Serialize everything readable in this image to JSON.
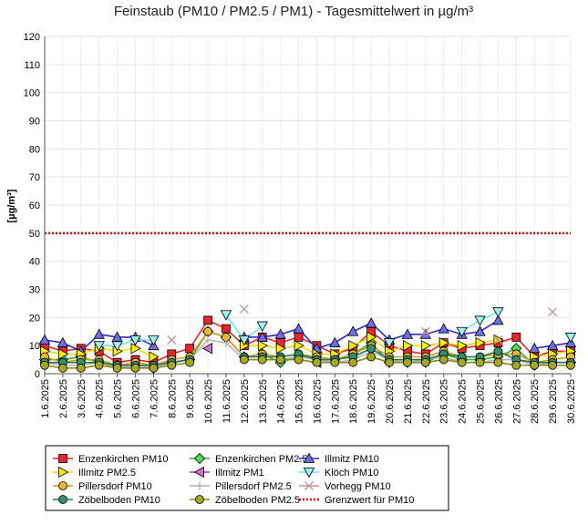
{
  "chart_data": {
    "type": "line",
    "title": "Feinstaub (PM10 / PM2.5 / PM1) -  Tagesmittelwert in µg/m³",
    "ylabel": "[µg/m³]",
    "xlabel": "",
    "ylim": [
      0,
      120
    ],
    "y_ticks": [
      0,
      10,
      20,
      30,
      40,
      50,
      60,
      70,
      80,
      90,
      100,
      110,
      120
    ],
    "grid": true,
    "legend_position": "bottom",
    "categories": [
      "1.6.2025",
      "2.6.2025",
      "3.6.2025",
      "4.6.2025",
      "5.6.2025",
      "6.6.2025",
      "7.6.2025",
      "8.6.2025",
      "9.6.2025",
      "10.6.2025",
      "11.6.2025",
      "12.6.2025",
      "13.6.2025",
      "14.6.2025",
      "15.6.2025",
      "16.6.2025",
      "17.6.2025",
      "18.6.2025",
      "19.6.2025",
      "20.6.2025",
      "21.6.2025",
      "22.6.2025",
      "23.6.2025",
      "24.6.2025",
      "25.6.2025",
      "26.6.2025",
      "27.6.2025",
      "28.6.2025",
      "29.6.2025",
      "30.6.2025"
    ],
    "series": [
      {
        "name": "Enzenkirchen PM10",
        "color": "#e8262b",
        "line_color": "#e8262b",
        "marker": "square",
        "marker_fill": "#e8262b",
        "values": [
          10,
          8,
          9,
          8,
          4,
          5,
          4,
          7,
          9,
          19,
          16,
          10,
          13,
          11,
          13,
          10,
          7,
          9,
          15,
          10,
          8,
          7,
          11,
          9,
          10,
          11,
          13,
          6,
          8,
          8
        ]
      },
      {
        "name": "Enzenkirchen PM2.5",
        "color": "#2db52d",
        "line_color": "#2db52d",
        "marker": "diamond",
        "marker_fill": "#56d956",
        "values": [
          5,
          5,
          6,
          4,
          3,
          3,
          2,
          4,
          5,
          15,
          13,
          6,
          7,
          4,
          6,
          6,
          5,
          7,
          11,
          4,
          4,
          4,
          7,
          5,
          5,
          6,
          9,
          3,
          4,
          4
        ]
      },
      {
        "name": "Illmitz PM10",
        "color": "#2b2bd6",
        "line_color": "#2b2bd6",
        "marker": "triangle-up",
        "marker_fill": "#6e6ee8",
        "values": [
          12,
          11,
          8,
          14,
          13,
          13,
          10,
          null,
          null,
          null,
          null,
          13,
          13,
          14,
          16,
          9,
          11,
          15,
          18,
          12,
          14,
          14,
          16,
          14,
          15,
          19,
          null,
          9,
          10,
          11
        ]
      },
      {
        "name": "Illmitz PM2.5",
        "color": "#f0e000",
        "line_color": "#f0e000",
        "marker": "triangle-right",
        "marker_fill": "#ffee00",
        "values": [
          8,
          7,
          7,
          9,
          8,
          9,
          6,
          null,
          null,
          null,
          null,
          10,
          10,
          9,
          10,
          7,
          7,
          10,
          13,
          8,
          10,
          10,
          11,
          10,
          11,
          12,
          null,
          6,
          7,
          8
        ]
      },
      {
        "name": "Illmitz PM1",
        "color": "#b43cb4",
        "line_color": "#b43cb4",
        "marker": "triangle-left",
        "marker_fill": "#d070d0",
        "values": [
          null,
          null,
          null,
          null,
          null,
          null,
          null,
          null,
          null,
          9,
          null,
          null,
          null,
          null,
          null,
          4,
          null,
          null,
          null,
          null,
          null,
          null,
          null,
          null,
          null,
          null,
          null,
          null,
          null,
          null
        ]
      },
      {
        "name": "Klöch PM10",
        "color": "#6be6e6",
        "line_color": "#6be6e6",
        "marker": "triangle-down",
        "marker_fill": "#9ff0f0",
        "values": [
          null,
          null,
          null,
          10,
          10,
          12,
          12,
          null,
          null,
          null,
          21,
          12,
          17,
          null,
          null,
          null,
          null,
          null,
          null,
          11,
          null,
          null,
          null,
          15,
          19,
          22,
          null,
          null,
          null,
          13
        ]
      },
      {
        "name": "Pillersdorf PM10",
        "color": "#d99a1a",
        "line_color": "#d99a1a",
        "marker": "circle",
        "marker_fill": "#f0b830",
        "values": [
          6,
          4,
          5,
          5,
          3,
          4,
          3,
          5,
          6,
          15,
          13,
          6,
          7,
          6,
          7,
          6,
          5,
          7,
          10,
          6,
          6,
          6,
          8,
          6,
          6,
          7,
          7,
          4,
          5,
          6
        ]
      },
      {
        "name": "Pillersdorf PM2.5",
        "color": "#b4b4b4",
        "line_color": "#b4b4b4",
        "marker": "plus",
        "marker_fill": "#b4b4b4",
        "values": [
          4,
          3,
          3,
          4,
          2,
          3,
          2,
          4,
          5,
          12,
          11,
          5,
          5,
          5,
          6,
          5,
          4,
          5,
          8,
          5,
          4,
          5,
          6,
          4,
          4,
          5,
          5,
          3,
          4,
          4
        ]
      },
      {
        "name": "Vorhegg PM10",
        "color": "#c89090",
        "line_color": "#c89090",
        "marker": "cross",
        "marker_fill": "#c89090",
        "values": [
          null,
          null,
          null,
          null,
          null,
          null,
          null,
          12,
          null,
          null,
          null,
          23,
          null,
          null,
          null,
          null,
          null,
          null,
          null,
          null,
          null,
          15,
          null,
          null,
          null,
          12,
          null,
          null,
          22,
          null
        ]
      },
      {
        "name": "Zöbelboden PM10",
        "color": "#1a7a5a",
        "line_color": "#1a7a5a",
        "marker": "circle",
        "marker_fill": "#2f8f6f",
        "values": [
          4,
          4,
          4,
          4,
          3,
          3,
          3,
          4,
          5,
          null,
          null,
          6,
          6,
          6,
          7,
          5,
          5,
          6,
          9,
          5,
          5,
          5,
          7,
          6,
          6,
          8,
          5,
          4,
          4,
          4
        ]
      },
      {
        "name": "Zöbelboden PM2.5",
        "color": "#8a8a10",
        "line_color": "#8a8a10",
        "marker": "circle",
        "marker_fill": "#a8a820",
        "values": [
          3,
          2,
          2,
          3,
          2,
          2,
          2,
          3,
          4,
          null,
          null,
          5,
          5,
          5,
          5,
          4,
          4,
          4,
          6,
          4,
          4,
          4,
          5,
          4,
          4,
          4,
          3,
          3,
          3,
          3
        ]
      },
      {
        "name": "Grenzwert für PM10",
        "color": "#ee0000",
        "line_color": "#ee0000",
        "marker": "dotted-line",
        "marker_fill": "#ee0000",
        "values": [
          50,
          50,
          50,
          50,
          50,
          50,
          50,
          50,
          50,
          50,
          50,
          50,
          50,
          50,
          50,
          50,
          50,
          50,
          50,
          50,
          50,
          50,
          50,
          50,
          50,
          50,
          50,
          50,
          50,
          50
        ]
      }
    ]
  }
}
